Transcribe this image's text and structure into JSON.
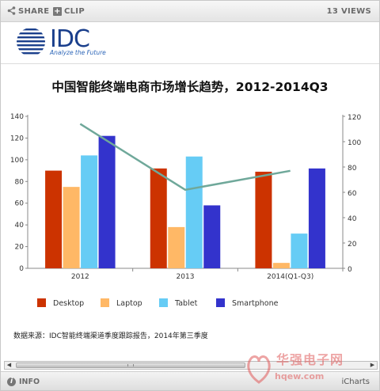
{
  "toolbar": {
    "share_label": "SHARE",
    "clip_label": "CLIP",
    "views_label": "13 VIEWS"
  },
  "logo": {
    "name": "IDC",
    "tagline": "Analyze the Future"
  },
  "chart_data": {
    "type": "bar",
    "title": "中国智能终端电商市场增长趋势，2012-2014Q3",
    "categories": [
      "2012",
      "2013",
      "2014(Q1-Q3)"
    ],
    "series": [
      {
        "name": "Desktop",
        "values": [
          90,
          92,
          89
        ],
        "color": "#cc3300"
      },
      {
        "name": "Laptop",
        "values": [
          75,
          38,
          5
        ],
        "color": "#ffb866"
      },
      {
        "name": "Tablet",
        "values": [
          104,
          103,
          32
        ],
        "color": "#66ccf5"
      },
      {
        "name": "Smartphone",
        "values": [
          122,
          58,
          92
        ],
        "color": "#3333cc"
      }
    ],
    "line_series": {
      "values": [
        114,
        62,
        77
      ],
      "color": "#6fa89a",
      "axis": "right"
    },
    "yleft": {
      "range": [
        0,
        140
      ],
      "ticks": [
        0,
        20,
        40,
        60,
        80,
        100,
        120,
        140
      ]
    },
    "yright": {
      "range": [
        0,
        120
      ],
      "ticks": [
        0,
        20,
        40,
        60,
        80,
        100,
        120
      ]
    },
    "legend_position": "bottom",
    "grid": false
  },
  "source_note": "数据来源：IDC智能终端渠道季度跟踪报告，2014年第三季度",
  "footer": {
    "info_label": "INFO",
    "brand": "iCharts"
  },
  "watermark": {
    "text": "华强电子网",
    "url": "hqew.com"
  }
}
